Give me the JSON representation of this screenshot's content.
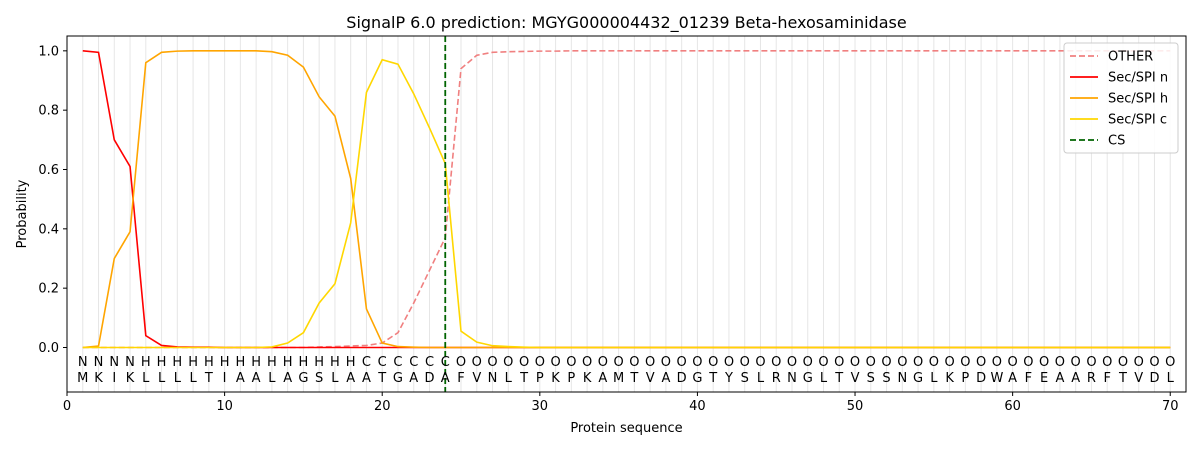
{
  "chart_data": {
    "type": "line",
    "title": "SignalP 6.0 prediction: MGYG000004432_01239 Beta-hexosaminidase",
    "xlabel": "Protein sequence",
    "ylabel": "Probability",
    "xlim": [
      0,
      71
    ],
    "ylim": [
      -0.15,
      1.05
    ],
    "x_ticks": [
      0,
      10,
      20,
      30,
      40,
      50,
      60,
      70
    ],
    "y_ticks": [
      0.0,
      0.2,
      0.4,
      0.6,
      0.8,
      1.0
    ],
    "x_tick_labels": [
      "0",
      "10",
      "20",
      "30",
      "40",
      "50",
      "60",
      "70"
    ],
    "y_tick_labels": [
      "0.0",
      "0.2",
      "0.4",
      "0.6",
      "0.8",
      "1.0"
    ],
    "sequence": "MKIKLLLLTIAALAGSLAATGADAFVNLTPKPKAMTVADGTYSLRNGLTVSSNGLKPDWAFEAARFTVDL",
    "region_labels": "NNNNHHHHHHHHHHHHHHCCCCCCOOOOOOOOOOOOOOOOOOOOOOOOOOOOOOOOOOOOOOOOOOOOOO",
    "region_colors": {
      "N": "#ff0000",
      "H": "#ffa500",
      "C": "#ffd700",
      "O": "#808080"
    },
    "cleavage_site": 24,
    "legend_position": "top-right",
    "series": [
      {
        "name": "OTHER",
        "color": "#f08080",
        "dashed": true,
        "values": [
          0.0,
          0.0,
          0.0,
          0.0,
          0.0,
          0.0,
          0.0,
          0.0,
          0.0,
          0.0,
          0.0,
          0.0,
          0.0,
          0.0,
          0.0,
          0.002,
          0.003,
          0.005,
          0.007,
          0.015,
          0.05,
          0.15,
          0.26,
          0.37,
          0.94,
          0.985,
          0.995,
          0.997,
          0.998,
          0.999,
          0.999,
          1.0,
          1.0,
          1.0,
          1.0,
          1.0,
          1.0,
          1.0,
          1.0,
          1.0,
          1.0,
          1.0,
          1.0,
          1.0,
          1.0,
          1.0,
          1.0,
          1.0,
          1.0,
          1.0,
          1.0,
          1.0,
          1.0,
          1.0,
          1.0,
          1.0,
          1.0,
          1.0,
          1.0,
          1.0,
          1.0,
          1.0,
          1.0,
          1.0,
          1.0,
          1.0,
          1.0,
          1.0,
          1.0,
          1.0
        ]
      },
      {
        "name": "Sec/SPI n",
        "color": "#ff0000",
        "dashed": false,
        "values": [
          1.0,
          0.995,
          0.7,
          0.61,
          0.04,
          0.007,
          0.002,
          0.001,
          0.001,
          0.0,
          0.0,
          0.0,
          0.0,
          0.0,
          0.0,
          0.0,
          0.0,
          0.0,
          0.0,
          0.0,
          0.0,
          0.0,
          0.0,
          0.0,
          0.0,
          0.0,
          0.0,
          0.0,
          0.0,
          0.0,
          0.0,
          0.0,
          0.0,
          0.0,
          0.0,
          0.0,
          0.0,
          0.0,
          0.0,
          0.0,
          0.0,
          0.0,
          0.0,
          0.0,
          0.0,
          0.0,
          0.0,
          0.0,
          0.0,
          0.0,
          0.0,
          0.0,
          0.0,
          0.0,
          0.0,
          0.0,
          0.0,
          0.0,
          0.0,
          0.0,
          0.0,
          0.0,
          0.0,
          0.0,
          0.0,
          0.0,
          0.0,
          0.0,
          0.0,
          0.0
        ]
      },
      {
        "name": "Sec/SPI h",
        "color": "#ffa500",
        "dashed": false,
        "values": [
          0.0,
          0.005,
          0.3,
          0.39,
          0.96,
          0.995,
          0.999,
          1.0,
          1.0,
          1.0,
          1.0,
          1.0,
          0.997,
          0.985,
          0.945,
          0.845,
          0.78,
          0.57,
          0.13,
          0.015,
          0.003,
          0.001,
          0.0,
          0.0,
          0.0,
          0.0,
          0.0,
          0.0,
          0.0,
          0.0,
          0.0,
          0.0,
          0.0,
          0.0,
          0.0,
          0.0,
          0.0,
          0.0,
          0.0,
          0.0,
          0.0,
          0.0,
          0.0,
          0.0,
          0.0,
          0.0,
          0.0,
          0.0,
          0.0,
          0.0,
          0.0,
          0.0,
          0.0,
          0.0,
          0.0,
          0.0,
          0.0,
          0.0,
          0.0,
          0.0,
          0.0,
          0.0,
          0.0,
          0.0,
          0.0,
          0.0,
          0.0,
          0.0,
          0.0,
          0.0
        ]
      },
      {
        "name": "Sec/SPI c",
        "color": "#ffd700",
        "dashed": false,
        "values": [
          0.0,
          0.0,
          0.0,
          0.0,
          0.0,
          0.0,
          0.0,
          0.0,
          0.0,
          0.0,
          0.0,
          0.0,
          0.002,
          0.015,
          0.05,
          0.15,
          0.215,
          0.42,
          0.86,
          0.97,
          0.955,
          0.855,
          0.74,
          0.62,
          0.055,
          0.018,
          0.006,
          0.003,
          0.001,
          0.0,
          0.0,
          0.0,
          0.0,
          0.0,
          0.0,
          0.0,
          0.0,
          0.0,
          0.0,
          0.0,
          0.0,
          0.0,
          0.0,
          0.0,
          0.0,
          0.0,
          0.0,
          0.0,
          0.0,
          0.0,
          0.0,
          0.0,
          0.0,
          0.0,
          0.0,
          0.0,
          0.0,
          0.0,
          0.0,
          0.0,
          0.0,
          0.0,
          0.0,
          0.0,
          0.0,
          0.0,
          0.0,
          0.0,
          0.0,
          0.0
        ]
      }
    ],
    "cs_legend": {
      "name": "CS",
      "color": "#006400"
    }
  }
}
